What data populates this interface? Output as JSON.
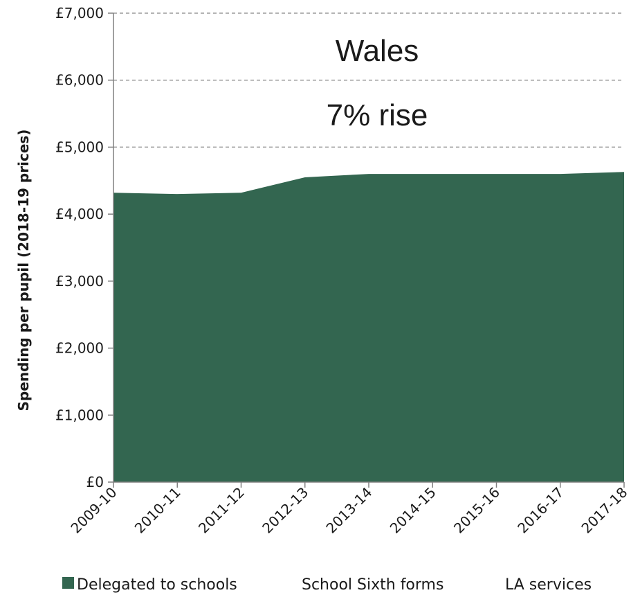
{
  "chart_data": {
    "type": "area",
    "stacked": true,
    "categories": [
      "2009-10",
      "2010-11",
      "2011-12",
      "2012-13",
      "2013-14",
      "2014-15",
      "2015-16",
      "2016-17",
      "2017-18"
    ],
    "series": [
      {
        "name": "Delegated to schools",
        "values": [
          4320,
          4300,
          4320,
          4550,
          4600,
          4600,
          4600,
          4600,
          4630
        ],
        "color": "#336650"
      },
      {
        "name": "School Sixth forms",
        "values": [
          0,
          0,
          0,
          0,
          0,
          0,
          0,
          0,
          0
        ],
        "color": "#ffffff"
      },
      {
        "name": "LA services",
        "values": [
          0,
          0,
          0,
          0,
          0,
          0,
          0,
          0,
          0
        ],
        "color": "#ffffff"
      }
    ],
    "ylabel": "Spending per pupil (2018-19 prices)",
    "ylim": [
      0,
      7000
    ],
    "yticks": [
      0,
      1000,
      2000,
      3000,
      4000,
      5000,
      6000,
      7000
    ],
    "ytick_labels": [
      "£0",
      "£1,000",
      "£2,000",
      "£3,000",
      "£4,000",
      "£5,000",
      "£6,000",
      "£7,000"
    ],
    "grid": "dashed horizontal",
    "legend_position": "bottom",
    "annotations": [
      "Wales",
      "7% rise"
    ]
  }
}
